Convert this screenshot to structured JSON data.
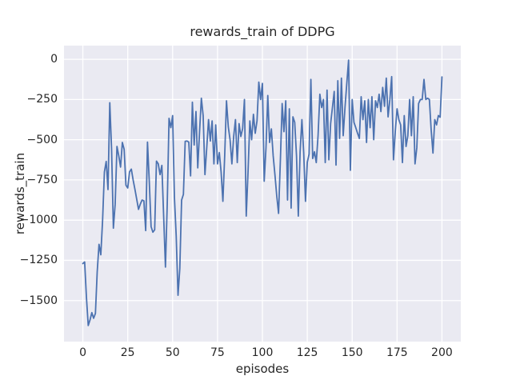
{
  "figure": {
    "title": "rewards_train of DDPG",
    "xlabel": "episodes",
    "ylabel": "rewards_train"
  },
  "chart_data": {
    "type": "line",
    "title": "rewards_train of DDPG",
    "xlabel": "episodes",
    "ylabel": "rewards_train",
    "legend": false,
    "grid": true,
    "x_ticks": [
      0,
      25,
      50,
      75,
      100,
      125,
      150,
      175,
      200
    ],
    "x_tick_labels": [
      "0",
      "25",
      "50",
      "75",
      "100",
      "125",
      "150",
      "175",
      "200"
    ],
    "y_ticks": [
      0,
      -250,
      -500,
      -750,
      -1000,
      -1250,
      -1500
    ],
    "y_tick_labels": [
      "0",
      "−250",
      "−500",
      "−750",
      "−1000",
      "−1250",
      "−1500"
    ],
    "xlim": [
      -10.5,
      210.5
    ],
    "ylim": [
      -1755,
      85
    ],
    "x_start": 0,
    "x_step": 1,
    "colors": {
      "line": "#4C72B0",
      "plot_background": "#EAEAF2",
      "grid": "#FFFFFF",
      "figure_background": "#FFFFFF",
      "text": "#262626"
    },
    "values": [
      -1270,
      -1260,
      -1480,
      -1655,
      -1620,
      -1575,
      -1610,
      -1580,
      -1320,
      -1150,
      -1215,
      -1000,
      -700,
      -635,
      -810,
      -270,
      -560,
      -1050,
      -900,
      -542,
      -600,
      -670,
      -517,
      -560,
      -783,
      -800,
      -700,
      -683,
      -750,
      -808,
      -870,
      -933,
      -900,
      -875,
      -880,
      -1065,
      -515,
      -760,
      -1040,
      -1075,
      -1060,
      -633,
      -650,
      -717,
      -660,
      -975,
      -1292,
      -900,
      -367,
      -425,
      -350,
      -858,
      -1100,
      -1467,
      -1300,
      -875,
      -840,
      -510,
      -508,
      -515,
      -725,
      -267,
      -533,
      -325,
      -675,
      -450,
      -242,
      -350,
      -717,
      -550,
      -375,
      -508,
      -383,
      -650,
      -408,
      -650,
      -580,
      -700,
      -883,
      -600,
      -258,
      -420,
      -500,
      -650,
      -480,
      -375,
      -642,
      -400,
      -480,
      -430,
      -250,
      -975,
      -700,
      -383,
      -500,
      -342,
      -460,
      -383,
      -142,
      -250,
      -150,
      -758,
      -550,
      -225,
      -517,
      -433,
      -600,
      -720,
      -850,
      -958,
      -633,
      -275,
      -450,
      -258,
      -875,
      -308,
      -925,
      -358,
      -392,
      -600,
      -975,
      -575,
      -375,
      -580,
      -883,
      -640,
      -590,
      -125,
      -617,
      -575,
      -642,
      -475,
      -217,
      -300,
      -250,
      -642,
      -192,
      -625,
      -400,
      -300,
      -200,
      -658,
      -133,
      -492,
      -117,
      -475,
      -300,
      -150,
      -5,
      -690,
      -250,
      -392,
      -425,
      -460,
      -492,
      -233,
      -375,
      -258,
      -517,
      -250,
      -425,
      -233,
      -500,
      -258,
      -300,
      -217,
      -325,
      -175,
      -292,
      -117,
      -358,
      -250,
      -108,
      -625,
      -450,
      -308,
      -375,
      -408,
      -642,
      -350,
      -542,
      -475,
      -250,
      -475,
      -233,
      -650,
      -550,
      -275,
      -250,
      -250,
      -125,
      -250,
      -242,
      -250,
      -440,
      -583,
      -375,
      -408,
      -350,
      -360,
      -110
    ]
  }
}
